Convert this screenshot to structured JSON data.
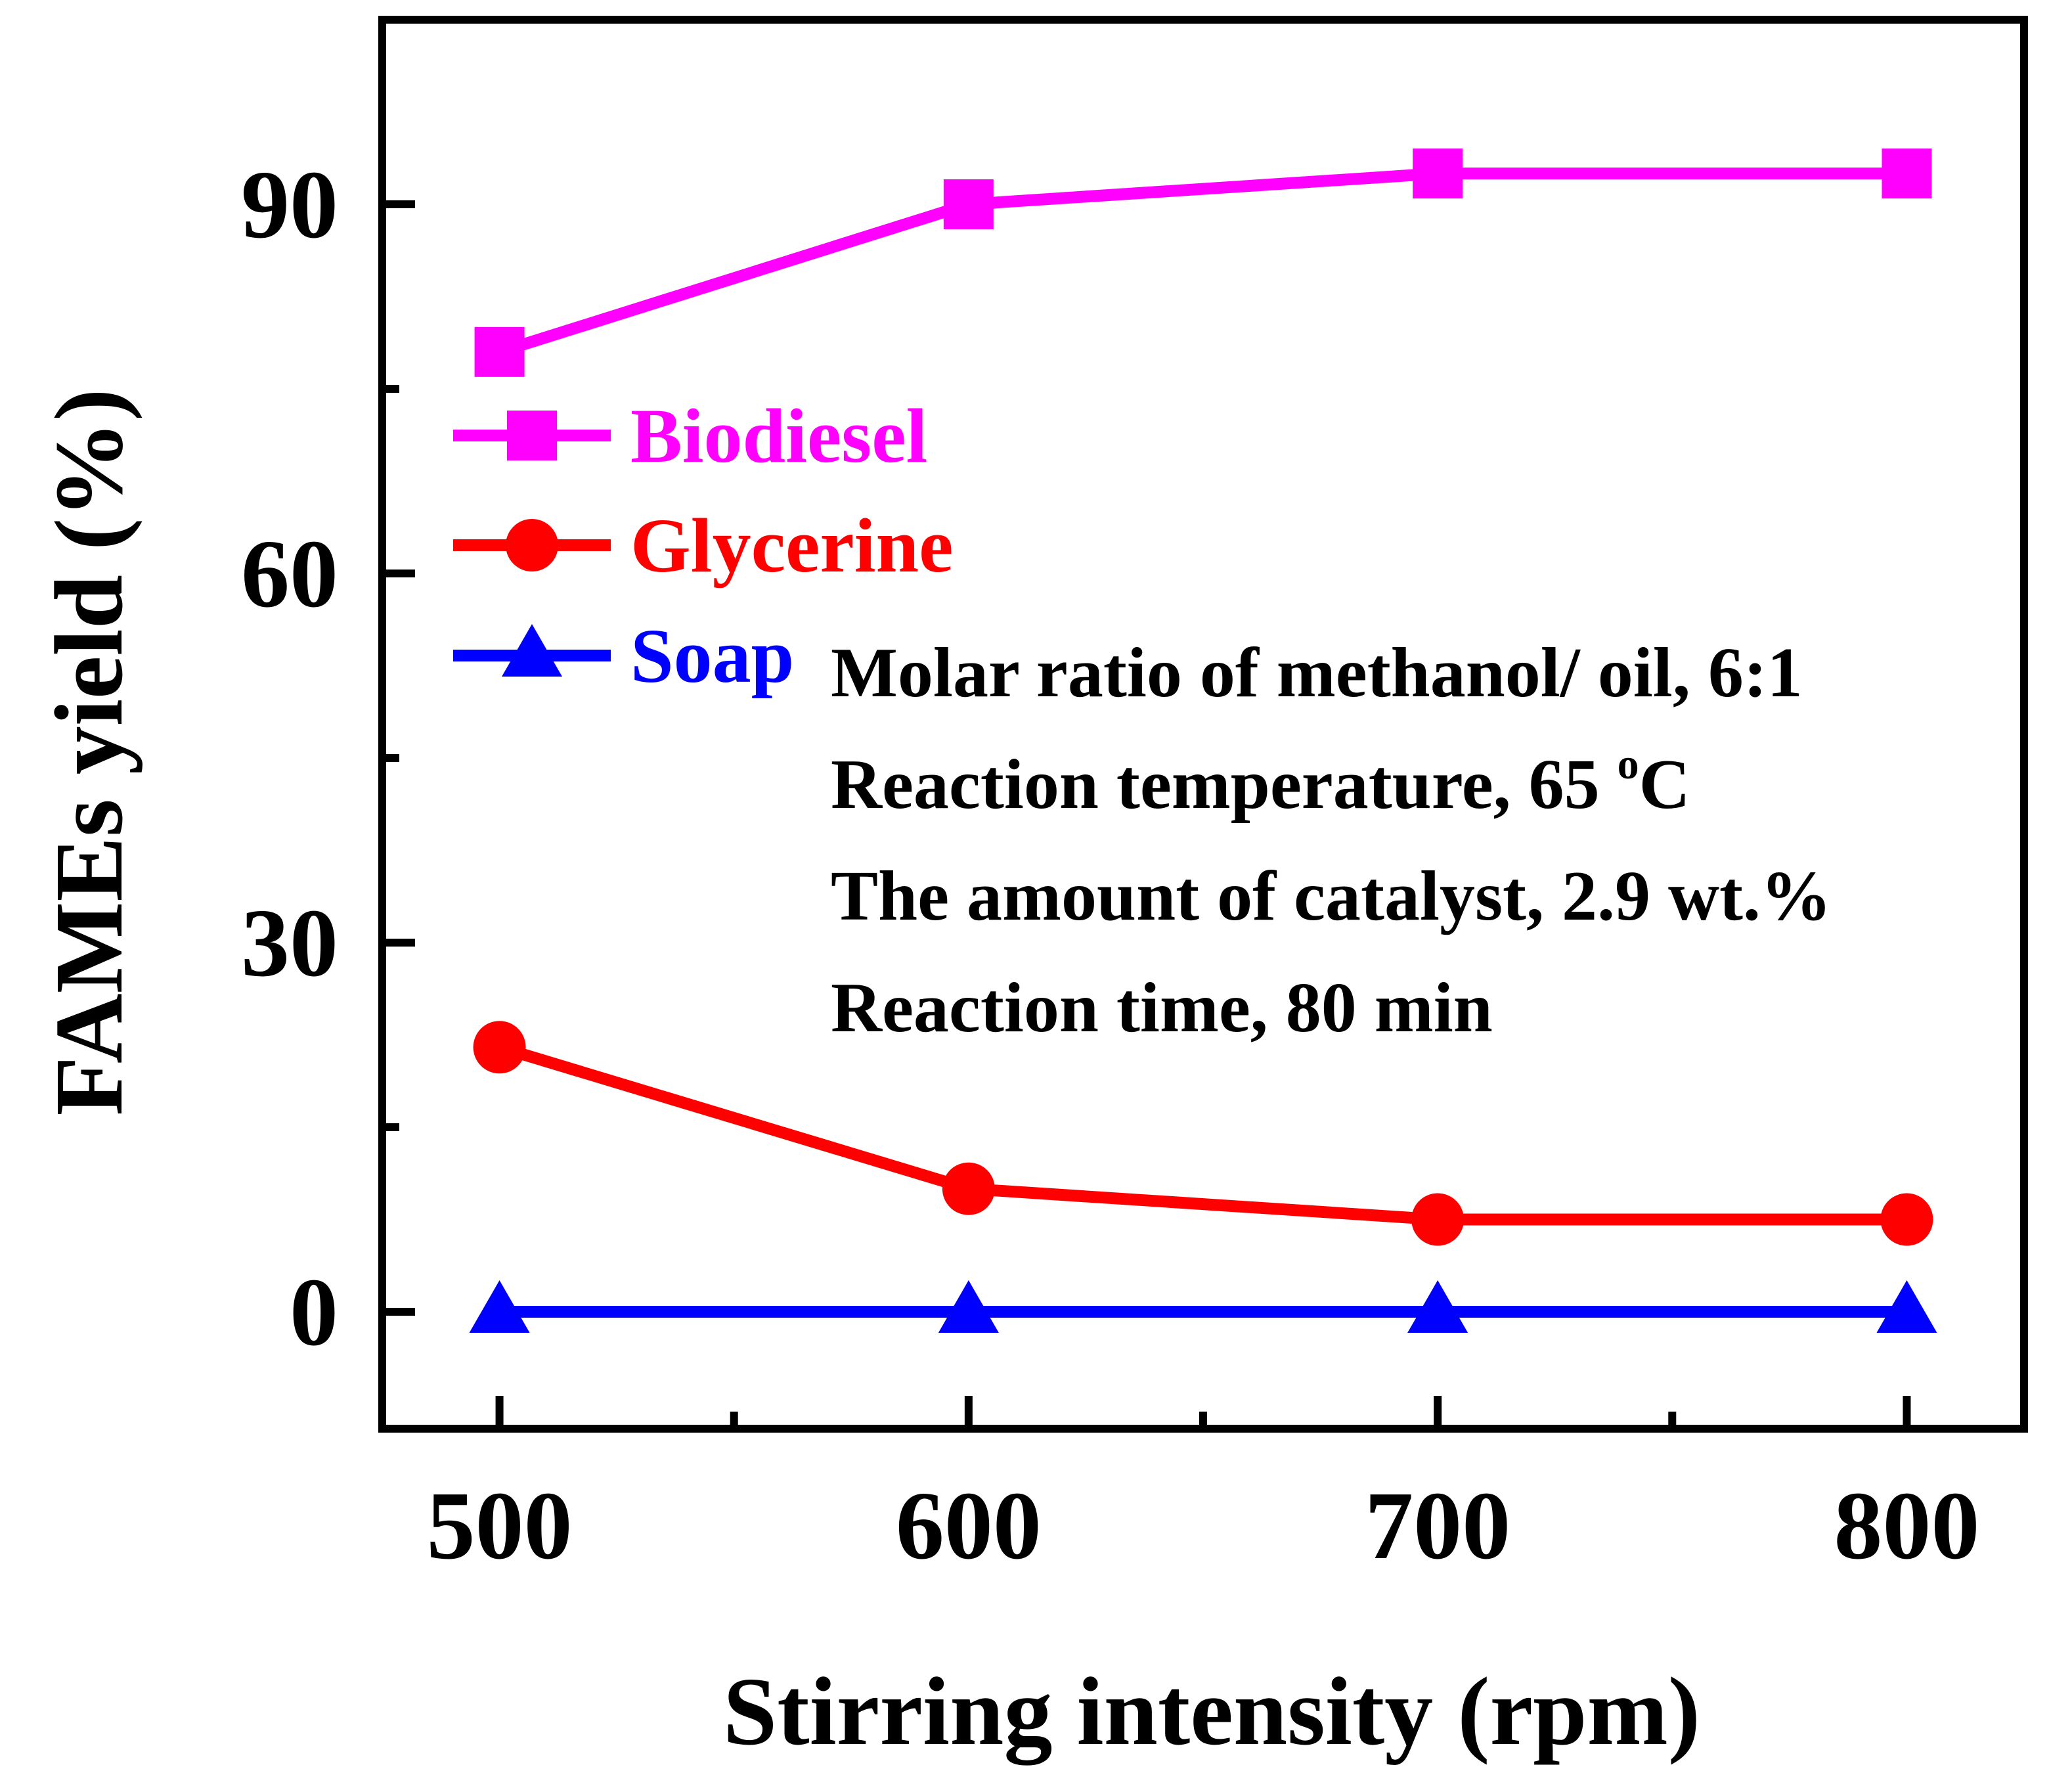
{
  "chart_data": {
    "type": "line",
    "title": "",
    "xlabel": "Stirring intensity (rpm)",
    "ylabel": "FAMEs yield (%)",
    "x": [
      500,
      600,
      700,
      800
    ],
    "x_ticks": [
      500,
      600,
      700,
      800
    ],
    "y_ticks": [
      0,
      30,
      60,
      90
    ],
    "xlim": [
      475,
      825
    ],
    "ylim": [
      -9.5,
      105
    ],
    "grid": false,
    "legend_position": "left",
    "series": [
      {
        "name": "Biodiesel",
        "marker": "square",
        "color": "#ff00ff",
        "values": [
          78.0,
          90.0,
          92.5,
          92.5
        ]
      },
      {
        "name": "Glycerine",
        "marker": "circle",
        "color": "#ff0000",
        "values": [
          21.5,
          10.0,
          7.5,
          7.5
        ]
      },
      {
        "name": "Soap",
        "marker": "triangle",
        "color": "#0000ff",
        "values": [
          0.0,
          0.0,
          0.0,
          0.0
        ]
      }
    ],
    "annotations": [
      {
        "text": "Molar ratio of methanol/ oil, 6:1"
      },
      {
        "text": "Reaction temperature, 65 ",
        "superscript": "o",
        "suffix": "C"
      },
      {
        "text": "The amount of catalyst, 2.9 wt.%"
      },
      {
        "text": "Reaction time, 80 min"
      }
    ]
  }
}
